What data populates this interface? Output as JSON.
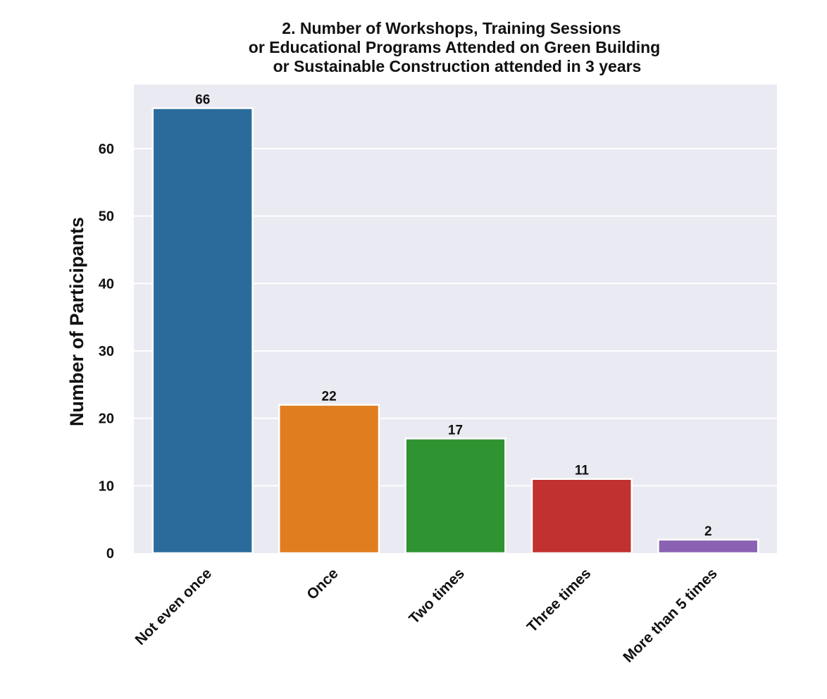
{
  "chart_data": {
    "type": "bar",
    "title_lines": [
      "2. Number of Workshops, Training Sessions",
      "or Educational Programs Attended on Green Building",
      "or Sustainable Construction attended in 3 years"
    ],
    "xlabel": "",
    "ylabel": "Number of Participants",
    "categories": [
      "Not even once",
      "Once",
      "Two times",
      "Three times",
      "More than 5 times"
    ],
    "values": [
      66,
      22,
      17,
      11,
      2
    ],
    "data_labels": [
      "66",
      "22",
      "17",
      "11",
      "2"
    ],
    "colors": [
      "#2a6b9c",
      "#e07d1f",
      "#2f9331",
      "#c0312f",
      "#8a62b3"
    ],
    "ylim": [
      0,
      69.5
    ],
    "yticks": [
      0,
      10,
      20,
      30,
      40,
      50,
      60
    ],
    "ytick_labels": [
      "0",
      "10",
      "20",
      "30",
      "40",
      "50",
      "60"
    ],
    "grid": true,
    "legend": "none",
    "plot_background": "#eaeaf2"
  }
}
